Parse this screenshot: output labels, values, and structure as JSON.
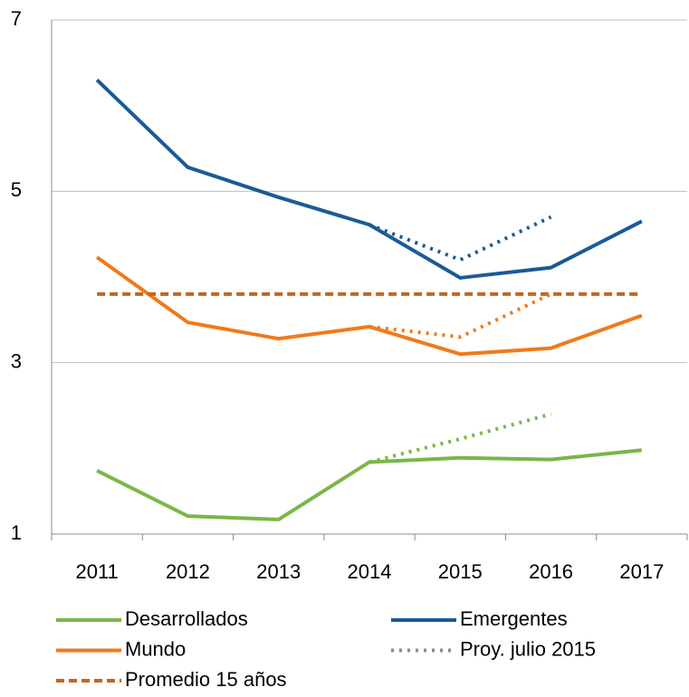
{
  "chart_data": {
    "type": "line",
    "categories": [
      "2011",
      "2012",
      "2013",
      "2014",
      "2015",
      "2016",
      "2017"
    ],
    "ylim": [
      1,
      7
    ],
    "yticks": [
      1,
      3,
      5,
      7
    ],
    "grid": true,
    "series": [
      {
        "name": "Desarrollados",
        "color": "#7ab648",
        "style": "solid",
        "values": [
          1.74,
          1.21,
          1.17,
          1.84,
          1.89,
          1.87,
          1.98
        ]
      },
      {
        "name": "Emergentes",
        "color": "#1b5a97",
        "style": "solid",
        "values": [
          6.3,
          5.28,
          4.93,
          4.61,
          3.99,
          4.11,
          4.65
        ]
      },
      {
        "name": "Mundo",
        "color": "#f07a1a",
        "style": "solid",
        "values": [
          4.23,
          3.47,
          3.28,
          3.42,
          3.1,
          3.17,
          3.55
        ]
      },
      {
        "name": "Promedio 15 años",
        "color": "#c5651e",
        "style": "dashed",
        "values": [
          3.8,
          3.8,
          3.8,
          3.8,
          3.8,
          3.8,
          3.8
        ]
      }
    ],
    "projection": {
      "name": "Proy. julio 2015",
      "color": "#8c8c8c",
      "style": "dotted",
      "series": [
        {
          "color": "#7ab648",
          "values": [
            null,
            null,
            null,
            1.84,
            2.11,
            2.4,
            null
          ]
        },
        {
          "color": "#1b5a97",
          "values": [
            null,
            null,
            null,
            4.61,
            4.2,
            4.7,
            null
          ]
        },
        {
          "color": "#f07a1a",
          "values": [
            null,
            null,
            null,
            3.42,
            3.3,
            3.8,
            null
          ]
        }
      ]
    }
  }
}
